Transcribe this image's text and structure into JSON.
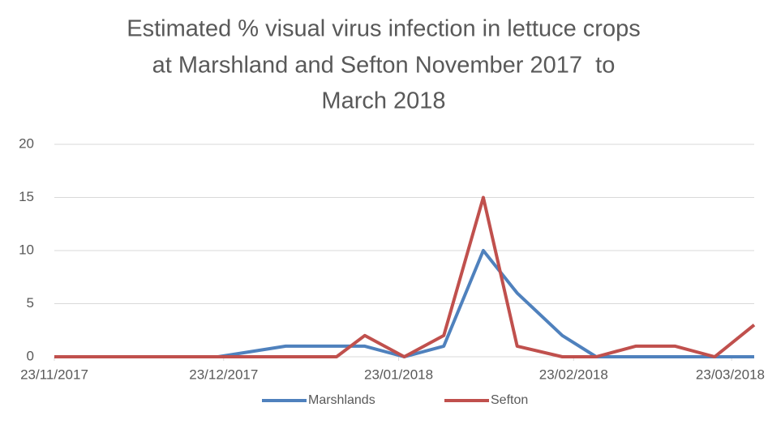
{
  "chart_data": {
    "type": "line",
    "title": [
      "Estimated % visual virus infection in lettuce crops",
      "at Marshland and Sefton November 2017  to",
      "March 2018"
    ],
    "x": [
      "23/11/2017",
      "22/12/2017",
      "03/01/2018",
      "12/01/2018",
      "17/01/2018",
      "24/01/2018",
      "31/01/2018",
      "07/02/2018",
      "13/02/2018",
      "21/02/2018",
      "27/02/2018",
      "06/03/2018",
      "13/03/2018",
      "20/03/2018",
      "27/03/2018"
    ],
    "series": [
      {
        "name": "Marshlands",
        "color": "#4f81bd",
        "values": [
          0,
          0,
          1,
          1,
          1,
          0,
          1,
          10,
          6,
          2,
          0,
          0,
          0,
          0,
          0
        ]
      },
      {
        "name": "Sefton",
        "color": "#c0504d",
        "values": [
          0,
          0,
          0,
          0,
          2,
          0,
          2,
          15,
          1,
          0,
          0,
          1,
          1,
          0,
          3
        ]
      }
    ],
    "xlim": [
      "23/11/2017",
      "27/03/2018"
    ],
    "xticks": [
      "23/11/2017",
      "23/12/2017",
      "23/01/2018",
      "23/02/2018",
      "23/03/2018"
    ],
    "ylim": [
      0,
      20
    ],
    "yticks": [
      0,
      5,
      10,
      15,
      20
    ],
    "grid": true,
    "legend": "bottom"
  }
}
